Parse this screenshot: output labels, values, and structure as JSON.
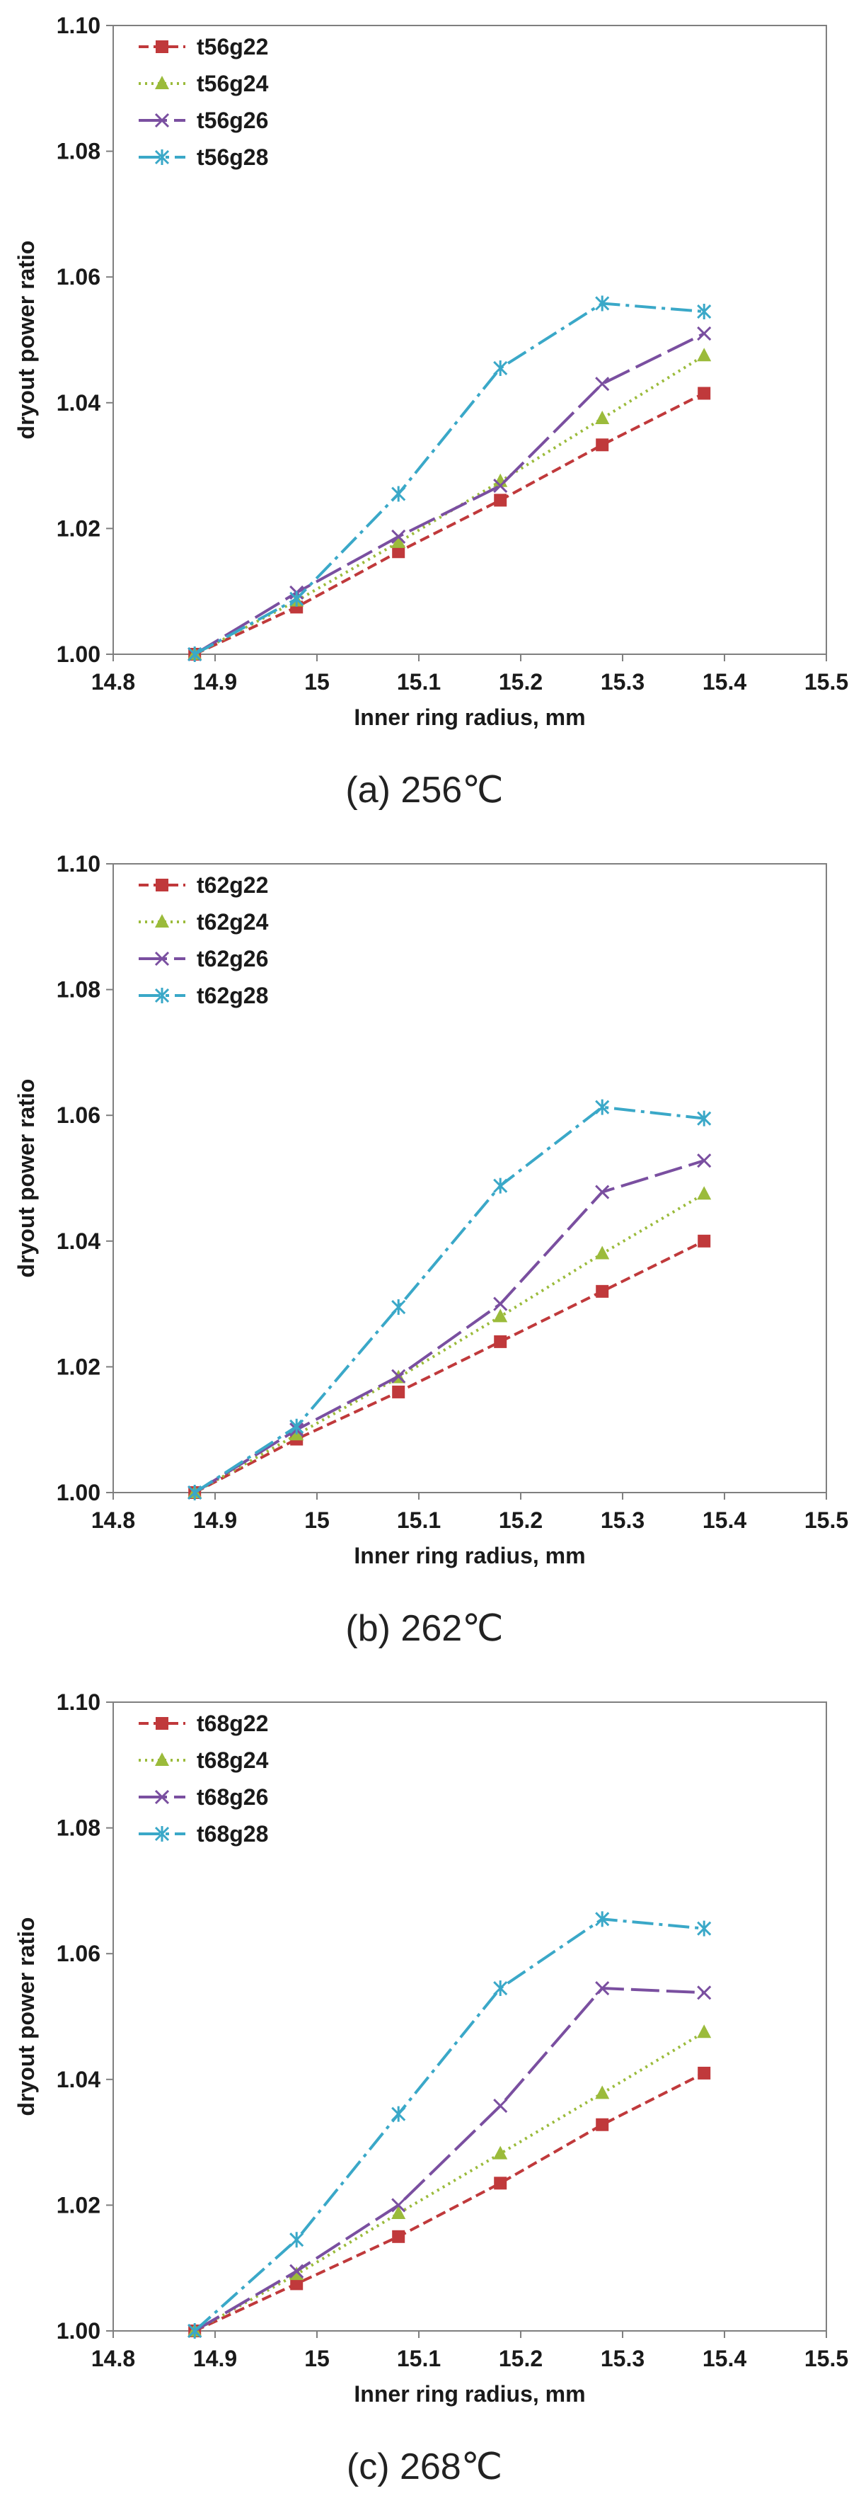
{
  "chart_data": [
    {
      "type": "line",
      "caption": "(a)  256℃",
      "xlabel": "Inner ring radius, mm",
      "ylabel": "dryout power ratio",
      "xlim": [
        14.8,
        15.5
      ],
      "ylim": [
        1.0,
        1.1
      ],
      "x_ticks": [
        "14.8",
        "14.9",
        "15",
        "15.1",
        "15.2",
        "15.3",
        "15.4",
        "15.5"
      ],
      "y_ticks": [
        "1.00",
        "1.02",
        "1.04",
        "1.06",
        "1.08",
        "1.10"
      ],
      "legend": "top-left",
      "x": [
        14.88,
        14.98,
        15.08,
        15.18,
        15.28,
        15.38
      ],
      "series": [
        {
          "name": "t56g22",
          "color": "#c0393b",
          "marker": "square",
          "dash": "14,7",
          "values": [
            1.0,
            1.0075,
            1.0163,
            1.0245,
            1.0333,
            1.0415
          ]
        },
        {
          "name": "t56g24",
          "color": "#9bbb3b",
          "marker": "triangle",
          "dash": "3,6",
          "values": [
            1.0,
            1.0085,
            1.0178,
            1.0275,
            1.0375,
            1.0475
          ]
        },
        {
          "name": "t56g26",
          "color": "#7a4fa0",
          "marker": "x",
          "dash": "40,10",
          "values": [
            1.0,
            1.0098,
            1.0187,
            1.0268,
            1.043,
            1.051
          ]
        },
        {
          "name": "t56g28",
          "color": "#3aa8c8",
          "marker": "star",
          "dash": "30,8,5,8",
          "values": [
            1.0,
            1.0088,
            1.0255,
            1.0455,
            1.0558,
            1.0545
          ]
        }
      ]
    },
    {
      "type": "line",
      "caption": "(b)  262℃",
      "xlabel": "Inner ring radius, mm",
      "ylabel": "dryout power ratio",
      "xlim": [
        14.8,
        15.5
      ],
      "ylim": [
        1.0,
        1.1
      ],
      "x_ticks": [
        "14.8",
        "14.9",
        "15",
        "15.1",
        "15.2",
        "15.3",
        "15.4",
        "15.5"
      ],
      "y_ticks": [
        "1.00",
        "1.02",
        "1.04",
        "1.06",
        "1.08",
        "1.10"
      ],
      "legend": "top-left",
      "x": [
        14.88,
        14.98,
        15.08,
        15.18,
        15.28,
        15.38
      ],
      "series": [
        {
          "name": "t62g22",
          "color": "#c0393b",
          "marker": "square",
          "dash": "14,7",
          "values": [
            1.0,
            1.0085,
            1.016,
            1.024,
            1.032,
            1.04
          ]
        },
        {
          "name": "t62g24",
          "color": "#9bbb3b",
          "marker": "triangle",
          "dash": "3,6",
          "values": [
            1.0,
            1.0092,
            1.0183,
            1.028,
            1.038,
            1.0475
          ]
        },
        {
          "name": "t62g26",
          "color": "#7a4fa0",
          "marker": "x",
          "dash": "40,10",
          "values": [
            1.0,
            1.01,
            1.0185,
            1.03,
            1.0478,
            1.0528
          ]
        },
        {
          "name": "t62g28",
          "color": "#3aa8c8",
          "marker": "star",
          "dash": "30,8,5,8",
          "values": [
            1.0,
            1.0105,
            1.0295,
            1.0488,
            1.0613,
            1.0595
          ]
        }
      ]
    },
    {
      "type": "line",
      "caption": "(c)  268℃",
      "xlabel": "Inner ring radius, mm",
      "ylabel": "dryout power ratio",
      "xlim": [
        14.8,
        15.5
      ],
      "ylim": [
        1.0,
        1.1
      ],
      "x_ticks": [
        "14.8",
        "14.9",
        "15",
        "15.1",
        "15.2",
        "15.3",
        "15.4",
        "15.5"
      ],
      "y_ticks": [
        "1.00",
        "1.02",
        "1.04",
        "1.06",
        "1.08",
        "1.10"
      ],
      "legend": "top-left",
      "x": [
        14.88,
        14.98,
        15.08,
        15.18,
        15.28,
        15.38
      ],
      "series": [
        {
          "name": "t68g22",
          "color": "#c0393b",
          "marker": "square",
          "dash": "14,7",
          "values": [
            1.0,
            1.0075,
            1.015,
            1.0235,
            1.0328,
            1.041
          ]
        },
        {
          "name": "t68g24",
          "color": "#9bbb3b",
          "marker": "triangle",
          "dash": "3,6",
          "values": [
            1.0,
            1.009,
            1.0187,
            1.0282,
            1.0378,
            1.0475
          ]
        },
        {
          "name": "t68g26",
          "color": "#7a4fa0",
          "marker": "x",
          "dash": "40,10",
          "values": [
            1.0,
            1.0095,
            1.02,
            1.0358,
            1.0545,
            1.0538
          ]
        },
        {
          "name": "t68g28",
          "color": "#3aa8c8",
          "marker": "star",
          "dash": "30,8,5,8",
          "values": [
            1.0,
            1.0145,
            1.0345,
            1.0545,
            1.0655,
            1.064
          ]
        }
      ]
    }
  ]
}
